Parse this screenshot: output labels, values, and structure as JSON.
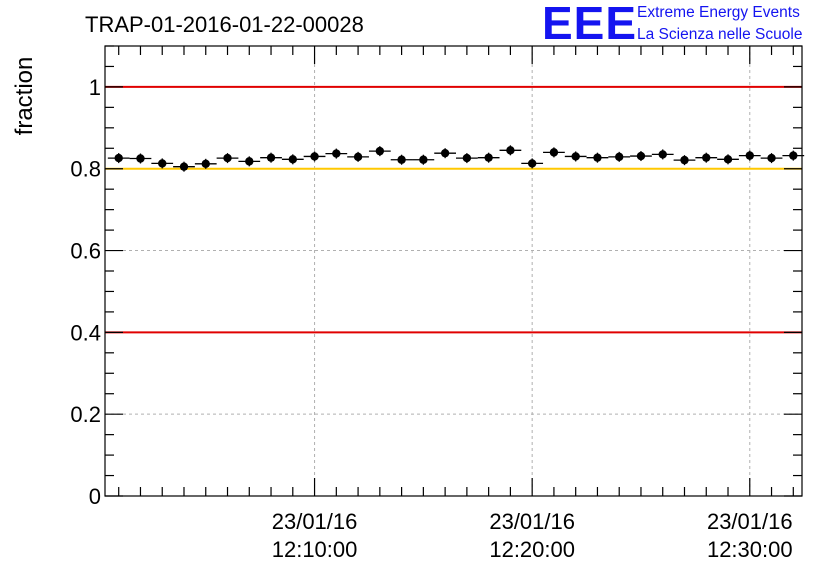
{
  "title": "TRAP-01-2016-01-22-00028",
  "logo": {
    "letters": "EEE",
    "line1": "Extreme Energy Events",
    "line2": "La Scienza nelle Scuole",
    "color": "#1414f0"
  },
  "chart_data": {
    "type": "scatter",
    "ylabel": "fraction",
    "xlabel": "",
    "ylim": [
      0,
      1.1
    ],
    "yticks": [
      0,
      0.2,
      0.4,
      0.6,
      0.8,
      1
    ],
    "ytick_labels": [
      "0",
      "0.2",
      "0.4",
      "0.6",
      "0.8",
      "1"
    ],
    "xlim_minutes": [
      -4.63,
      27.4
    ],
    "xticks": [
      {
        "minutes": 5,
        "line1": "23/01/16",
        "line2": "12:10:00"
      },
      {
        "minutes": 15,
        "line1": "23/01/16",
        "line2": "12:20:00"
      },
      {
        "minutes": 25,
        "line1": "23/01/16",
        "line2": "12:30:00"
      }
    ],
    "x_origin": "23/01/16 12:05:00",
    "grid": true,
    "error_bars": true,
    "reference_lines": [
      {
        "y": 1.0,
        "color": "#e00000"
      },
      {
        "y": 0.8,
        "color": "#ffc800"
      },
      {
        "y": 0.4,
        "color": "#e00000"
      }
    ],
    "series": [
      {
        "marker_color": "#000000",
        "x_minutes": [
          -4.0,
          -3.0,
          -2.0,
          -1.0,
          0.0,
          1.0,
          2.0,
          3.0,
          4.0,
          5.0,
          6.0,
          7.0,
          8.0,
          9.0,
          10.0,
          11.0,
          12.0,
          13.0,
          14.0,
          15.0,
          16.0,
          17.0,
          18.0,
          19.0,
          20.0,
          21.0,
          22.0,
          23.0,
          24.0,
          25.0,
          26.0,
          27.0
        ],
        "y": [
          0.826,
          0.825,
          0.813,
          0.805,
          0.812,
          0.826,
          0.818,
          0.827,
          0.823,
          0.83,
          0.837,
          0.829,
          0.843,
          0.822,
          0.822,
          0.838,
          0.826,
          0.827,
          0.845,
          0.813,
          0.84,
          0.83,
          0.827,
          0.829,
          0.831,
          0.835,
          0.821,
          0.827,
          0.823,
          0.832,
          0.826,
          0.832
        ]
      }
    ]
  }
}
